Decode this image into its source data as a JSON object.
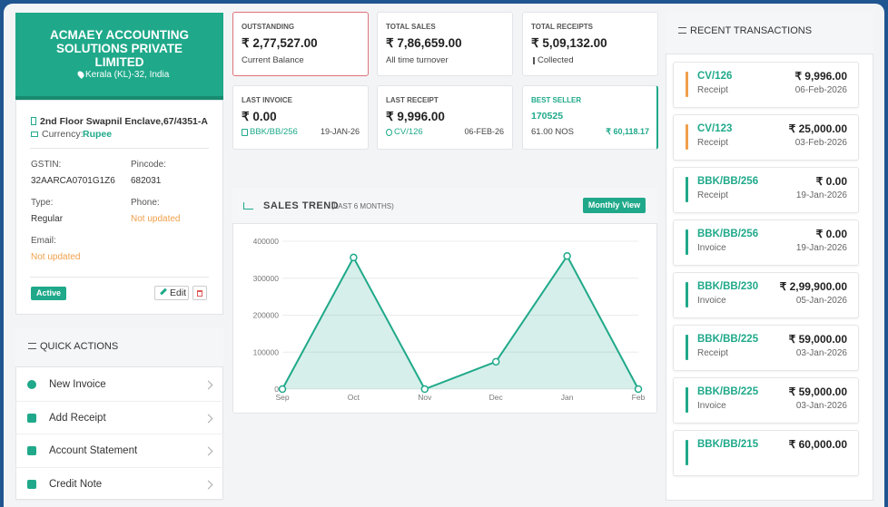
{
  "company": {
    "name_lines": [
      "ACMAEY ACCOUNTING",
      "SOLUTIONS PRIVATE",
      "LIMITED"
    ],
    "location": "Kerala (KL)-32, India",
    "address": "2nd Floor Swapnil Enclave,67/4351-A",
    "currency_label": "Currency:",
    "currency": "Rupee",
    "fields": [
      {
        "label": "GSTIN:",
        "value": "32AARCA0701G1Z6"
      },
      {
        "label": "Pincode:",
        "value": "682031"
      },
      {
        "label": "Type:",
        "value": "Regular"
      },
      {
        "label": "Phone:",
        "value": "Not updated"
      },
      {
        "label": "Email:",
        "value": "Not updated"
      }
    ],
    "status": "Active",
    "edit": "Edit"
  },
  "quick_actions": {
    "title": "QUICK ACTIONS",
    "items": [
      "New Invoice",
      "Add Receipt",
      "Account Statement",
      "Credit Note"
    ]
  },
  "stats": [
    {
      "label": "OUTSTANDING",
      "value": "₹ 2,77,527.00",
      "note": "Current Balance"
    },
    {
      "label": "TOTAL SALES",
      "value": "₹ 7,86,659.00",
      "note": "All time turnover"
    },
    {
      "label": "TOTAL RECEIPTS",
      "value": "₹ 5,09,132.00",
      "note": "Collected"
    },
    {
      "label": "LAST INVOICE",
      "value": "₹ 0.00",
      "ref": "BBK/BB/256",
      "date": "19-JAN-26"
    },
    {
      "label": "LAST RECEIPT",
      "value": "₹ 9,996.00",
      "ref": "CV/126",
      "date": "06-FEB-26"
    },
    {
      "label": "BEST SELLER",
      "value": "170525",
      "ref": "61.00 NOS",
      "date": "₹ 60,118.17"
    }
  ],
  "chart_data": {
    "type": "area",
    "title": "SALES TREND",
    "subtitle": "(LAST 6 MONTHS)",
    "button": "Monthly View",
    "categories": [
      "Sep",
      "Oct",
      "Nov",
      "Dec",
      "Jan",
      "Feb"
    ],
    "values": [
      0,
      356000,
      0,
      74000,
      360000,
      0
    ],
    "color": "#1fa98a",
    "ylim": [
      0,
      400000
    ],
    "yticks": [
      0,
      100000,
      200000,
      300000,
      400000
    ],
    "grid": true
  },
  "recent_transactions": {
    "title": "RECENT TRANSACTIONS",
    "items": [
      {
        "ref": "CV/126",
        "type": "Receipt",
        "amount": "₹ 9,996.00",
        "date": "06-Feb-2026",
        "color": "#f0a04b"
      },
      {
        "ref": "CV/123",
        "type": "Receipt",
        "amount": "₹ 25,000.00",
        "date": "03-Feb-2026",
        "color": "#f0a04b"
      },
      {
        "ref": "BBK/BB/256",
        "type": "Receipt",
        "amount": "₹ 0.00",
        "date": "19-Jan-2026",
        "color": "#1fa98a"
      },
      {
        "ref": "BBK/BB/256",
        "type": "Invoice",
        "amount": "₹ 0.00",
        "date": "19-Jan-2026",
        "color": "#1fa98a"
      },
      {
        "ref": "BBK/BB/230",
        "type": "Invoice",
        "amount": "₹ 2,99,900.00",
        "date": "05-Jan-2026",
        "color": "#1fa98a"
      },
      {
        "ref": "BBK/BB/225",
        "type": "Receipt",
        "amount": "₹ 59,000.00",
        "date": "03-Jan-2026",
        "color": "#1fa98a"
      },
      {
        "ref": "BBK/BB/225",
        "type": "Invoice",
        "amount": "₹ 59,000.00",
        "date": "03-Jan-2026",
        "color": "#1fa98a"
      },
      {
        "ref": "BBK/BB/215",
        "amount": "₹ 60,000.00",
        "color": "#1fa98a"
      }
    ]
  }
}
